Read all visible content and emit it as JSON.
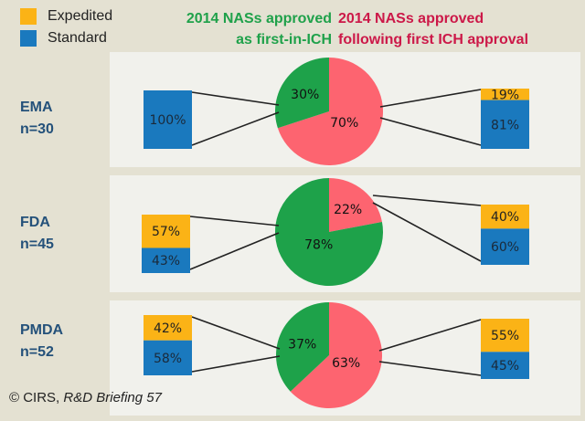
{
  "legend": [
    {
      "label": "Expedited",
      "color": "#fbb316"
    },
    {
      "label": "Standard",
      "color": "#1a79be"
    }
  ],
  "headers": {
    "first_in_ich": {
      "line1": "2014 NASs approved",
      "line2": "as first-in-ICH",
      "color": "#1fa14a"
    },
    "following_ich": {
      "line1": "2014 NASs approved",
      "line2": "following first ICH approval",
      "color": "#cc1848"
    }
  },
  "colors": {
    "expedited": "#fbb316",
    "standard": "#1a79be",
    "first_in_ich": "#1ea24a",
    "following": "#fd6470",
    "panel": "#f1f1ec",
    "background": "#e4e1d2"
  },
  "footer": {
    "copyright": "© CIRS, ",
    "source": "R&D Briefing 57"
  },
  "chart_data": {
    "type": "pie",
    "title": "2014 NASs approved as first-in-ICH vs following first ICH approval",
    "legend": [
      "Expedited",
      "Standard"
    ],
    "legend_position": "top-left",
    "agencies": [
      {
        "name": "EMA",
        "n_label": "n=30",
        "n": 30,
        "pie": {
          "first_in_ich": 30,
          "following": 70
        },
        "first_in_ich_split": {
          "expedited": 0,
          "standard": 100
        },
        "following_split": {
          "expedited": 19,
          "standard": 81
        }
      },
      {
        "name": "FDA",
        "n_label": "n=45",
        "n": 45,
        "pie": {
          "first_in_ich": 78,
          "following": 22
        },
        "first_in_ich_split": {
          "expedited": 57,
          "standard": 43
        },
        "following_split": {
          "expedited": 40,
          "standard": 60
        }
      },
      {
        "name": "PMDA",
        "n_label": "n=52",
        "n": 52,
        "pie": {
          "first_in_ich": 37,
          "following": 63
        },
        "first_in_ich_split": {
          "expedited": 42,
          "standard": 58
        },
        "following_split": {
          "expedited": 55,
          "standard": 45
        }
      }
    ]
  }
}
